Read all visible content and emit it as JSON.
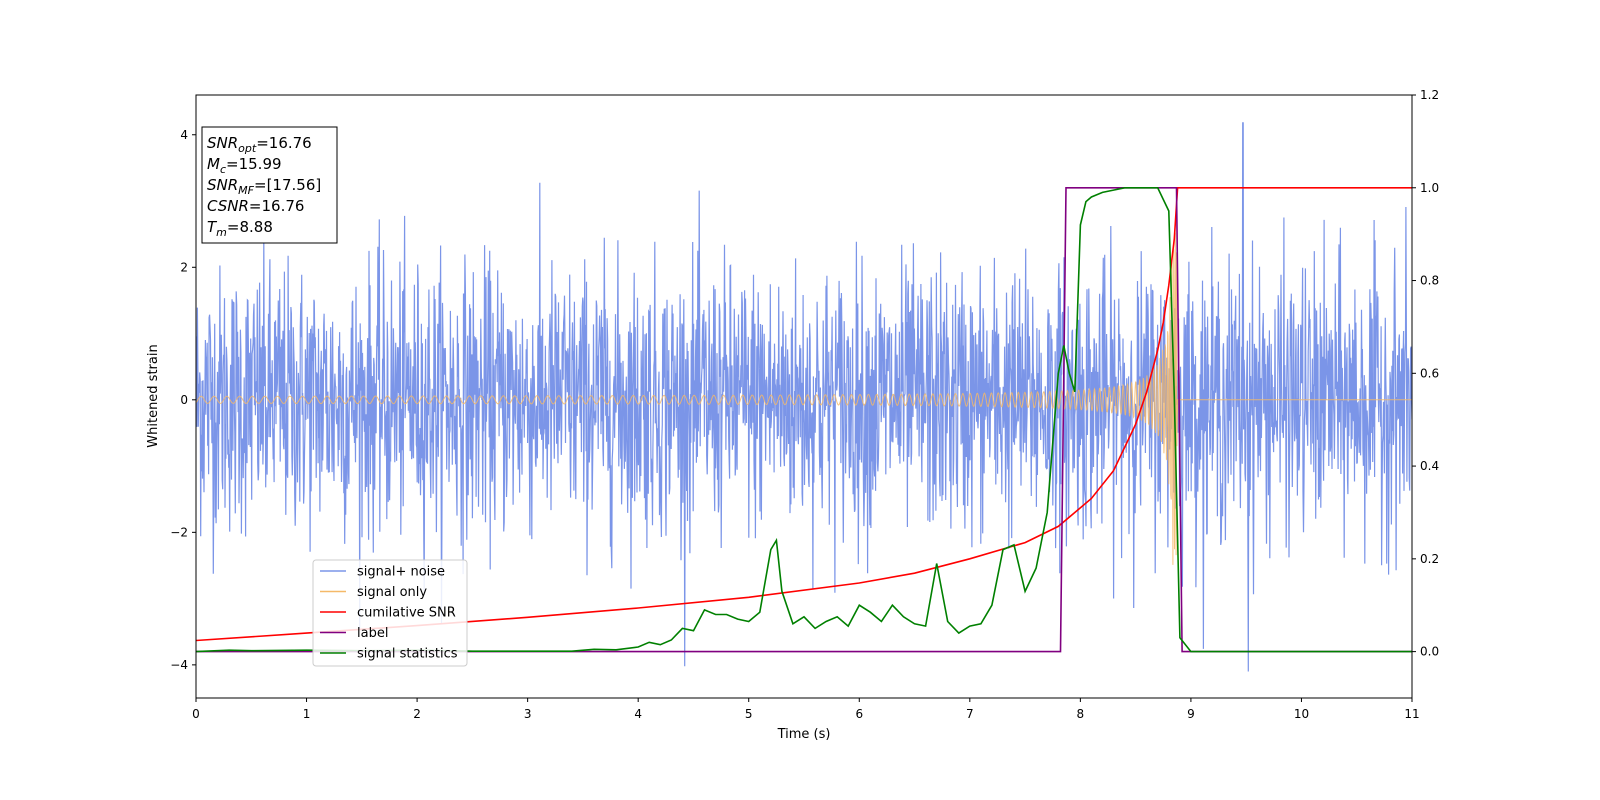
{
  "chart_data": {
    "type": "line",
    "xlabel": "Time (s)",
    "ylabel": "Whitened strain",
    "xlim": [
      0,
      11
    ],
    "ylim": [
      -4.5,
      4.6
    ],
    "y2lim": [
      -0.1,
      1.2
    ],
    "xticks": [
      0,
      1,
      2,
      3,
      4,
      5,
      6,
      7,
      8,
      9,
      10,
      11
    ],
    "yticks": [
      -4,
      -2,
      0,
      2,
      4
    ],
    "y2ticks": [
      "0.0",
      "0.2",
      "0.4",
      "0.6",
      "0.8",
      "1.0",
      "1.2"
    ],
    "legend_position": "lower-left",
    "annotation": {
      "lines": [
        {
          "sym": "SNR",
          "sub": "opt",
          "val": "=16.76"
        },
        {
          "sym": "M",
          "sub": "c",
          "val": "=15.99"
        },
        {
          "sym": "SNR",
          "sub": "MF",
          "val": "=[17.56]"
        },
        {
          "sym": "CSNR",
          "sub": "",
          "val": "=16.76"
        },
        {
          "sym": "T",
          "sub": "m",
          "val": "=8.88"
        }
      ]
    },
    "series": [
      {
        "name": "signal+ noise",
        "color": "#7b95e8",
        "axis": "left",
        "kind": "noise",
        "range_x": [
          0,
          11
        ],
        "noise_sigma": 1.0,
        "noise_peak_max": 4.18,
        "noise_peak_min": -4.1
      },
      {
        "name": "signal only",
        "color": "#f5b969",
        "axis": "left",
        "kind": "chirp",
        "merger_time": 8.88,
        "amplitude_start": 0.05,
        "amplitude_max": 2.6
      },
      {
        "name": "cumilative SNR",
        "color": "#ff0000",
        "axis": "right",
        "x": [
          0,
          1,
          2,
          3,
          4,
          5,
          6,
          6.5,
          7,
          7.5,
          7.8,
          8.1,
          8.3,
          8.5,
          8.6,
          8.7,
          8.75,
          8.8,
          8.85,
          8.88,
          9,
          10,
          11
        ],
        "y": [
          0.024,
          0.04,
          0.056,
          0.074,
          0.094,
          0.117,
          0.148,
          0.169,
          0.2,
          0.235,
          0.27,
          0.33,
          0.39,
          0.49,
          0.56,
          0.65,
          0.71,
          0.79,
          0.89,
          1.0,
          1.0,
          1.0,
          1.0
        ]
      },
      {
        "name": "label",
        "color": "#800080",
        "axis": "right",
        "x": [
          0,
          7.82,
          7.87,
          8.87,
          8.92,
          11
        ],
        "y": [
          0,
          0,
          1,
          1,
          0,
          0
        ]
      },
      {
        "name": "signal statistics",
        "color": "#008000",
        "axis": "right",
        "x": [
          0,
          0.3,
          0.5,
          1.0,
          1.5,
          2.0,
          2.5,
          3.0,
          3.4,
          3.6,
          3.8,
          4.0,
          4.1,
          4.2,
          4.3,
          4.4,
          4.5,
          4.6,
          4.7,
          4.8,
          4.9,
          5.0,
          5.1,
          5.2,
          5.25,
          5.3,
          5.4,
          5.5,
          5.6,
          5.7,
          5.8,
          5.9,
          6.0,
          6.1,
          6.2,
          6.3,
          6.4,
          6.5,
          6.6,
          6.7,
          6.8,
          6.9,
          7.0,
          7.1,
          7.2,
          7.3,
          7.4,
          7.5,
          7.6,
          7.7,
          7.8,
          7.85,
          7.9,
          7.95,
          8.0,
          8.05,
          8.1,
          8.2,
          8.3,
          8.4,
          8.5,
          8.6,
          8.7,
          8.8,
          8.85,
          8.9,
          9.0,
          9.5,
          10,
          11
        ],
        "y": [
          0.0,
          0.003,
          0.002,
          0.003,
          0.002,
          0.003,
          0.001,
          0.001,
          0.001,
          0.005,
          0.004,
          0.01,
          0.02,
          0.015,
          0.025,
          0.05,
          0.045,
          0.09,
          0.08,
          0.08,
          0.07,
          0.065,
          0.085,
          0.22,
          0.24,
          0.13,
          0.06,
          0.075,
          0.05,
          0.065,
          0.075,
          0.055,
          0.1,
          0.085,
          0.065,
          0.1,
          0.075,
          0.06,
          0.055,
          0.19,
          0.065,
          0.04,
          0.055,
          0.06,
          0.1,
          0.22,
          0.23,
          0.13,
          0.18,
          0.3,
          0.6,
          0.66,
          0.6,
          0.56,
          0.92,
          0.97,
          0.98,
          0.99,
          0.995,
          1.0,
          1.0,
          1.0,
          1.0,
          0.95,
          0.55,
          0.03,
          0.0,
          0.0,
          0.0,
          0.0
        ]
      }
    ]
  }
}
